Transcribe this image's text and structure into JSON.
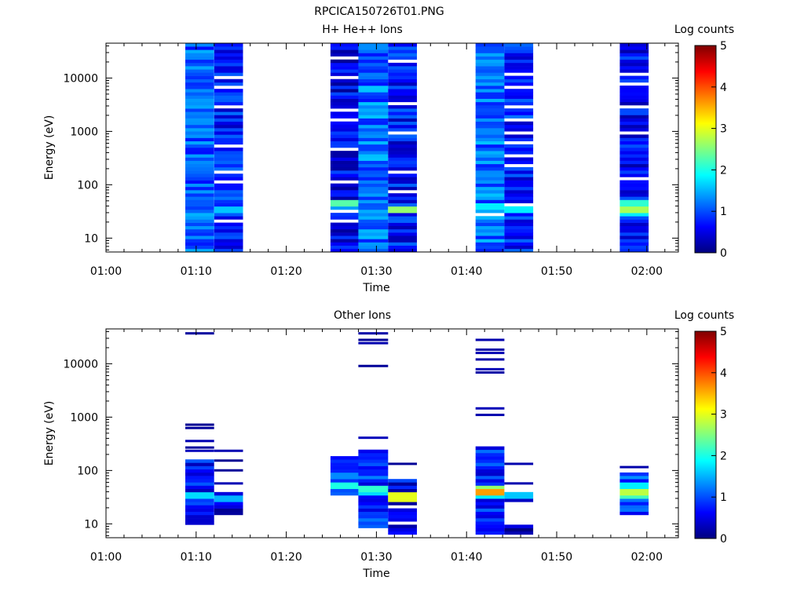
{
  "figure_title": "RPCICA150726T01.PNG",
  "colormap": [
    "#00007f",
    "#0000ff",
    "#0080ff",
    "#00ffff",
    "#80ff80",
    "#ffff00",
    "#ff8000",
    "#ff0000",
    "#7f0000"
  ],
  "chart_data": [
    {
      "type": "heatmap",
      "title": "H+ He++ Ions",
      "xlabel": "Time",
      "ylabel": "Energy (eV)",
      "y_scale": "log",
      "ylim": [
        5.5,
        45000
      ],
      "xlim_minutes": [
        60,
        123.5
      ],
      "x_ticks": [
        {
          "value": 60,
          "label": "01:00"
        },
        {
          "value": 70,
          "label": "01:10"
        },
        {
          "value": 80,
          "label": "01:20"
        },
        {
          "value": 90,
          "label": "01:30"
        },
        {
          "value": 100,
          "label": "01:40"
        },
        {
          "value": 110,
          "label": "01:50"
        },
        {
          "value": 120,
          "label": "02:00"
        }
      ],
      "y_ticks": [
        {
          "value": 10,
          "label": "10"
        },
        {
          "value": 100,
          "label": "100"
        },
        {
          "value": 1000,
          "label": "1000"
        },
        {
          "value": 10000,
          "label": "10000"
        }
      ],
      "colorbar": {
        "label": "Log counts",
        "range": [
          0,
          5
        ],
        "ticks": [
          "0",
          "1",
          "2",
          "3",
          "4",
          "5"
        ]
      },
      "columns": [
        {
          "x0": 68.8,
          "x1": 72.0,
          "mean": 1.1,
          "seed": 11,
          "hot": [],
          "gaps": []
        },
        {
          "x0": 72.0,
          "x1": 75.2,
          "mean": 0.75,
          "seed": 12,
          "hot": [
            {
              "emin": 30,
              "emax": 40,
              "level": 1.6
            }
          ],
          "gaps": [
            20,
            110,
            180,
            560,
            3100,
            6500,
            10500
          ]
        },
        {
          "x0": 84.9,
          "x1": 88.0,
          "mean": 0.55,
          "seed": 13,
          "hot": [
            {
              "emin": 42,
              "emax": 55,
              "level": 2.3
            },
            {
              "emin": 36,
              "emax": 40,
              "level": 1.4
            }
          ],
          "gaps": [
            22,
            30,
            120,
            480,
            1600,
            2600,
            10200,
            25000
          ]
        },
        {
          "x0": 88.0,
          "x1": 91.3,
          "mean": 1.15,
          "seed": 14,
          "hot": [],
          "gaps": []
        },
        {
          "x0": 91.3,
          "x1": 94.5,
          "mean": 0.7,
          "seed": 15,
          "hot": [
            {
              "emin": 28,
              "emax": 42,
              "level": 2.6
            }
          ],
          "gaps": [
            75,
            180,
            900,
            3300,
            22000
          ]
        },
        {
          "x0": 101.0,
          "x1": 104.2,
          "mean": 1.15,
          "seed": 16,
          "hot": [
            {
              "emin": 36,
              "emax": 46,
              "level": 1.8
            }
          ],
          "gaps": [
            28
          ]
        },
        {
          "x0": 104.2,
          "x1": 107.4,
          "mean": 0.75,
          "seed": 17,
          "hot": [
            {
              "emin": 28,
              "emax": 38,
              "level": 1.8
            }
          ],
          "gaps": [
            40,
            220,
            360,
            620,
            950,
            1600,
            2800,
            6900,
            12000
          ]
        },
        {
          "x0": 117.0,
          "x1": 120.2,
          "mean": 0.6,
          "seed": 18,
          "hot": [
            {
              "emin": 42,
              "emax": 55,
              "level": 2.1
            },
            {
              "emin": 30,
              "emax": 40,
              "level": 2.7
            },
            {
              "emin": 26,
              "emax": 30,
              "level": 1.8
            }
          ],
          "gaps": [
            130,
            900,
            2800,
            7400,
            12500
          ]
        }
      ]
    },
    {
      "type": "heatmap",
      "title": "Other Ions",
      "xlabel": "Time",
      "ylabel": "Energy (eV)",
      "y_scale": "log",
      "ylim": [
        5.5,
        45000
      ],
      "xlim_minutes": [
        60,
        123.5
      ],
      "x_ticks": [
        {
          "value": 60,
          "label": "01:00"
        },
        {
          "value": 70,
          "label": "01:10"
        },
        {
          "value": 80,
          "label": "01:20"
        },
        {
          "value": 90,
          "label": "01:30"
        },
        {
          "value": 100,
          "label": "01:40"
        },
        {
          "value": 110,
          "label": "01:50"
        },
        {
          "value": 120,
          "label": "02:00"
        }
      ],
      "y_ticks": [
        {
          "value": 10,
          "label": "10"
        },
        {
          "value": 100,
          "label": "100"
        },
        {
          "value": 1000,
          "label": "1000"
        },
        {
          "value": 10000,
          "label": "10000"
        }
      ],
      "colorbar": {
        "label": "Log counts",
        "range": [
          0,
          5
        ],
        "ticks": [
          "0",
          "1",
          "2",
          "3",
          "4",
          "5"
        ]
      },
      "columns": [
        {
          "x0": 68.8,
          "x1": 72.0,
          "mean": 0.6,
          "seed": 21,
          "fill": [
            [
              10,
              170
            ]
          ],
          "lines": [
            230,
            270,
            340,
            620,
            720,
            38000
          ],
          "hot": [
            {
              "emin": 31,
              "emax": 38,
              "level": 1.7
            }
          ],
          "gaps": []
        },
        {
          "x0": 72.0,
          "x1": 75.2,
          "mean": 0.5,
          "seed": 22,
          "fill": [
            [
              15,
              40
            ]
          ],
          "lines": [
            55,
            105,
            160,
            240
          ],
          "hot": [
            {
              "emin": 26,
              "emax": 34,
              "level": 1.5
            }
          ],
          "gaps": []
        },
        {
          "x0": 84.9,
          "x1": 88.0,
          "mean": 0.7,
          "seed": 23,
          "fill": [
            [
              36,
              190
            ]
          ],
          "lines": [],
          "hot": [
            {
              "emin": 44,
              "emax": 58,
              "level": 2.0
            },
            {
              "emin": 70,
              "emax": 90,
              "level": 1.3
            }
          ],
          "gaps": []
        },
        {
          "x0": 88.0,
          "x1": 91.3,
          "mean": 0.85,
          "seed": 24,
          "fill": [
            [
              9,
              230
            ]
          ],
          "lines": [
            400,
            8900,
            24000,
            28000,
            38000
          ],
          "hot": [
            {
              "emin": 33,
              "emax": 40,
              "level": 1.7
            },
            {
              "emin": 40,
              "emax": 55,
              "level": 2.1
            }
          ],
          "gaps": []
        },
        {
          "x0": 91.3,
          "x1": 94.5,
          "mean": 0.55,
          "seed": 25,
          "fill": [
            [
              6,
              70
            ]
          ],
          "lines": [
            135
          ],
          "hot": [
            {
              "emin": 27,
              "emax": 42,
              "level": 3.0
            }
          ],
          "gaps": [
            10,
            22
          ]
        },
        {
          "x0": 101.0,
          "x1": 104.2,
          "mean": 0.8,
          "seed": 26,
          "fill": [
            [
              6,
              270
            ]
          ],
          "lines": [
            1100,
            1500,
            6500,
            7800,
            12500,
            16000,
            19000,
            26000
          ],
          "hot": [
            {
              "emin": 36,
              "emax": 46,
              "level": 3.6
            },
            {
              "emin": 46,
              "emax": 56,
              "level": 2.6
            },
            {
              "emin": 30,
              "emax": 36,
              "level": 1.8
            }
          ],
          "gaps": []
        },
        {
          "x0": 104.2,
          "x1": 107.4,
          "mean": 0.45,
          "seed": 27,
          "fill": [
            [
              6,
              9.5
            ],
            [
              26,
              40
            ]
          ],
          "lines": [
            55,
            140
          ],
          "hot": [
            {
              "emin": 30,
              "emax": 38,
              "level": 1.6
            }
          ],
          "gaps": []
        },
        {
          "x0": 117.0,
          "x1": 120.2,
          "mean": 0.9,
          "seed": 28,
          "fill": [
            [
              15,
              95
            ]
          ],
          "lines": [
            120
          ],
          "hot": [
            {
              "emin": 35,
              "emax": 48,
              "level": 2.8
            },
            {
              "emin": 28,
              "emax": 35,
              "level": 2.2
            },
            {
              "emin": 48,
              "emax": 60,
              "level": 1.8
            }
          ],
          "gaps": []
        }
      ]
    }
  ]
}
